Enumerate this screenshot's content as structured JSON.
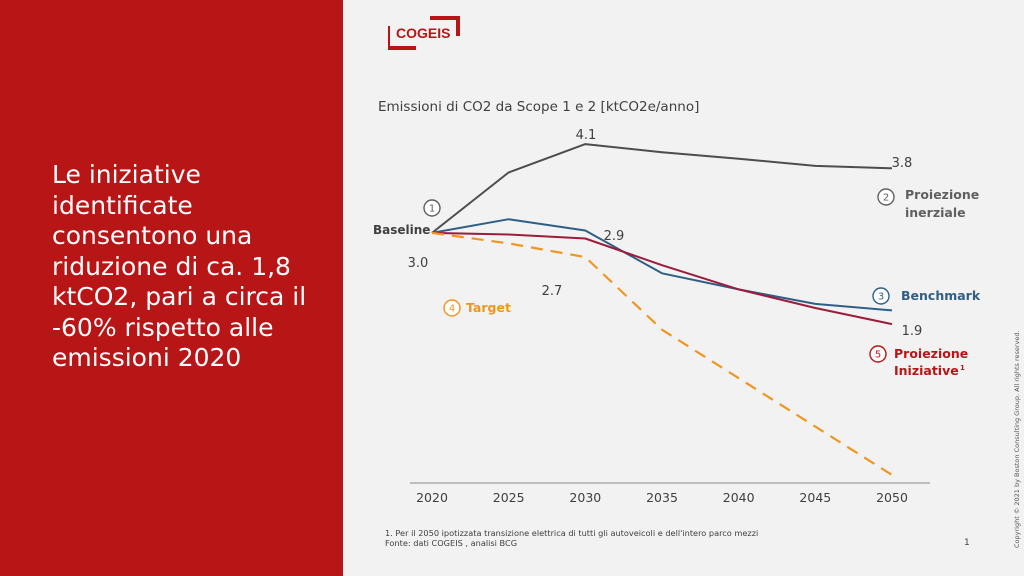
{
  "headline": "Le iniziative identificate consentono una riduzione di ca. 1,8 ktCO2, pari a circa il -60% rispetto alle emissioni 2020",
  "logo_text": "COGEIS",
  "colors": {
    "brand_red": "#b81517",
    "inertial": "#4d4d4d",
    "benchmark": "#2e5f86",
    "initiatives": "#9b1c3b",
    "target": "#f0961e"
  },
  "chart_data": {
    "type": "line",
    "title": "Emissioni di CO2 da Scope 1 e 2  [ktCO2e/anno]",
    "x": [
      2020,
      2025,
      2030,
      2035,
      2040,
      2045,
      2050
    ],
    "ylim": [
      0,
      4.5
    ],
    "grid": false,
    "series": [
      {
        "name": "Proiezione inerziale",
        "number": "2",
        "line2": "inerziale",
        "values": [
          3.0,
          3.75,
          4.1,
          4.0,
          3.92,
          3.83,
          3.8
        ],
        "color": "#4d4d4d",
        "dash": false
      },
      {
        "name": "Benchmark",
        "number": "3",
        "values": [
          3.0,
          3.17,
          3.03,
          2.5,
          2.3,
          2.12,
          2.04
        ],
        "color": "#2e5f86",
        "dash": false
      },
      {
        "name": "Proiezione Iniziative",
        "number": "5",
        "line1": "Proiezione",
        "line2": "Iniziative",
        "sup": "1",
        "values": [
          3.0,
          2.98,
          2.93,
          2.6,
          2.3,
          2.07,
          1.87
        ],
        "color": "#9b1c3b",
        "dash": false
      },
      {
        "name": "Target",
        "number": "4",
        "values": [
          3.0,
          2.87,
          2.7,
          1.8,
          1.2,
          0.6,
          0.0
        ],
        "color": "#f0961e",
        "dash": true
      }
    ],
    "data_labels": [
      "3.0",
      "4.1",
      "3.8",
      "2.9",
      "2.7",
      "1.9"
    ],
    "baseline": {
      "number": "1",
      "label": "Baseline"
    }
  },
  "footnote": "1.    Per il 2050 ipotizzata transizione elettrica di tutti gli autoveicoli e dell'intero parco mezzi",
  "source": "Fonte: dati    COGEIS , analisi BCG",
  "page_number": "1",
  "copyright": "Copyright © 2021 by Boston Consulting Group. All rights reserved."
}
